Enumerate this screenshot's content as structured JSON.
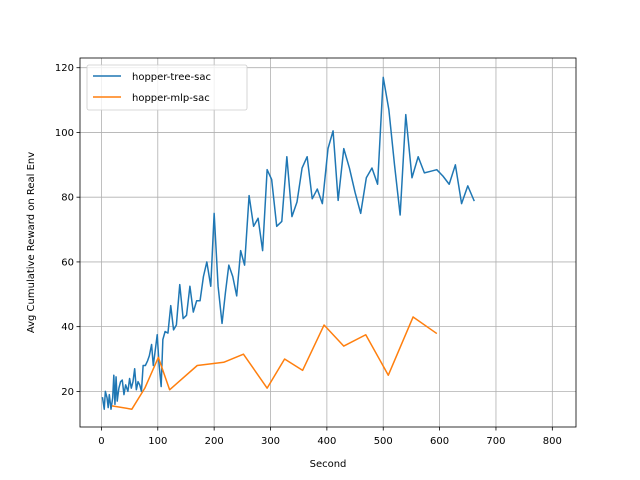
{
  "chart_data": {
    "type": "line",
    "xlabel": "Second",
    "ylabel": "Avg Cumulative Reward on Real Env",
    "xlim": [
      -38,
      842
    ],
    "ylim": [
      9,
      123
    ],
    "xticks": [
      0,
      100,
      200,
      300,
      400,
      500,
      600,
      700,
      800
    ],
    "yticks": [
      20,
      40,
      60,
      80,
      100,
      120
    ],
    "grid": true,
    "legend_position": "top-left",
    "series": [
      {
        "name": "hopper-tree-sac",
        "color": "#1f77b4",
        "points": [
          [
            2,
            18
          ],
          [
            5,
            14.5
          ],
          [
            7,
            20
          ],
          [
            10,
            18
          ],
          [
            12,
            15
          ],
          [
            14,
            19
          ],
          [
            17,
            14.5
          ],
          [
            20,
            18
          ],
          [
            22,
            25
          ],
          [
            24,
            16
          ],
          [
            26,
            24.5
          ],
          [
            28,
            17
          ],
          [
            31,
            21
          ],
          [
            34,
            23
          ],
          [
            37,
            23.5
          ],
          [
            40,
            19
          ],
          [
            43,
            22
          ],
          [
            47,
            20
          ],
          [
            50,
            24
          ],
          [
            53,
            21
          ],
          [
            56,
            23
          ],
          [
            59,
            27
          ],
          [
            62,
            20.5
          ],
          [
            65,
            23
          ],
          [
            68,
            22
          ],
          [
            71,
            20
          ],
          [
            74,
            28
          ],
          [
            78,
            28
          ],
          [
            82,
            29.5
          ],
          [
            85,
            31
          ],
          [
            89,
            34.5
          ],
          [
            92,
            28
          ],
          [
            95,
            32
          ],
          [
            99,
            37.5
          ],
          [
            102,
            29
          ],
          [
            106,
            21.5
          ],
          [
            109,
            36
          ],
          [
            113,
            38.5
          ],
          [
            118,
            38
          ],
          [
            123,
            46.5
          ],
          [
            128,
            39
          ],
          [
            133,
            40.5
          ],
          [
            139,
            53
          ],
          [
            145,
            42.5
          ],
          [
            151,
            43.5
          ],
          [
            157,
            52.5
          ],
          [
            163,
            44.5
          ],
          [
            169,
            48
          ],
          [
            175,
            48
          ],
          [
            181,
            55.5
          ],
          [
            187,
            60
          ],
          [
            194,
            52.5
          ],
          [
            200,
            75
          ],
          [
            207,
            52.5
          ],
          [
            214,
            41
          ],
          [
            220,
            50.5
          ],
          [
            226,
            59
          ],
          [
            233,
            55.5
          ],
          [
            240,
            49.5
          ],
          [
            247,
            63.5
          ],
          [
            254,
            59
          ],
          [
            262,
            80.5
          ],
          [
            270,
            71
          ],
          [
            278,
            73.5
          ],
          [
            286,
            63.5
          ],
          [
            294,
            88.5
          ],
          [
            302,
            85.5
          ],
          [
            311,
            71
          ],
          [
            320,
            72.5
          ],
          [
            329,
            92.5
          ],
          [
            338,
            74
          ],
          [
            347,
            78.5
          ],
          [
            356,
            89
          ],
          [
            365,
            92.5
          ],
          [
            374,
            79.5
          ],
          [
            383,
            82.5
          ],
          [
            392,
            78
          ],
          [
            402,
            95
          ],
          [
            411,
            100.5
          ],
          [
            420,
            79
          ],
          [
            430,
            95
          ],
          [
            440,
            89
          ],
          [
            450,
            81.5
          ],
          [
            460,
            75
          ],
          [
            470,
            86
          ],
          [
            480,
            89
          ],
          [
            490,
            84
          ],
          [
            500,
            117
          ],
          [
            510,
            107
          ],
          [
            520,
            90
          ],
          [
            530,
            74.5
          ],
          [
            540,
            105.5
          ],
          [
            551,
            86
          ],
          [
            562,
            92.5
          ],
          [
            573,
            87.5
          ],
          [
            584,
            88
          ],
          [
            595,
            88.5
          ],
          [
            606,
            86.5
          ],
          [
            617,
            84
          ],
          [
            628,
            90
          ],
          [
            639,
            78
          ],
          [
            650,
            83.5
          ],
          [
            661,
            79
          ]
        ]
      },
      {
        "name": "hopper-mlp-sac",
        "color": "#ff7f0e",
        "points": [
          [
            20,
            15.5
          ],
          [
            54,
            14.5
          ],
          [
            77,
            21
          ],
          [
            101,
            30.5
          ],
          [
            121,
            20.5
          ],
          [
            170,
            28
          ],
          [
            217,
            29
          ],
          [
            252,
            31.5
          ],
          [
            294,
            21
          ],
          [
            325,
            30
          ],
          [
            357,
            26.5
          ],
          [
            395,
            40.5
          ],
          [
            430,
            34
          ],
          [
            469,
            37.5
          ],
          [
            509,
            25
          ],
          [
            553,
            43
          ],
          [
            594,
            38
          ]
        ]
      }
    ]
  }
}
